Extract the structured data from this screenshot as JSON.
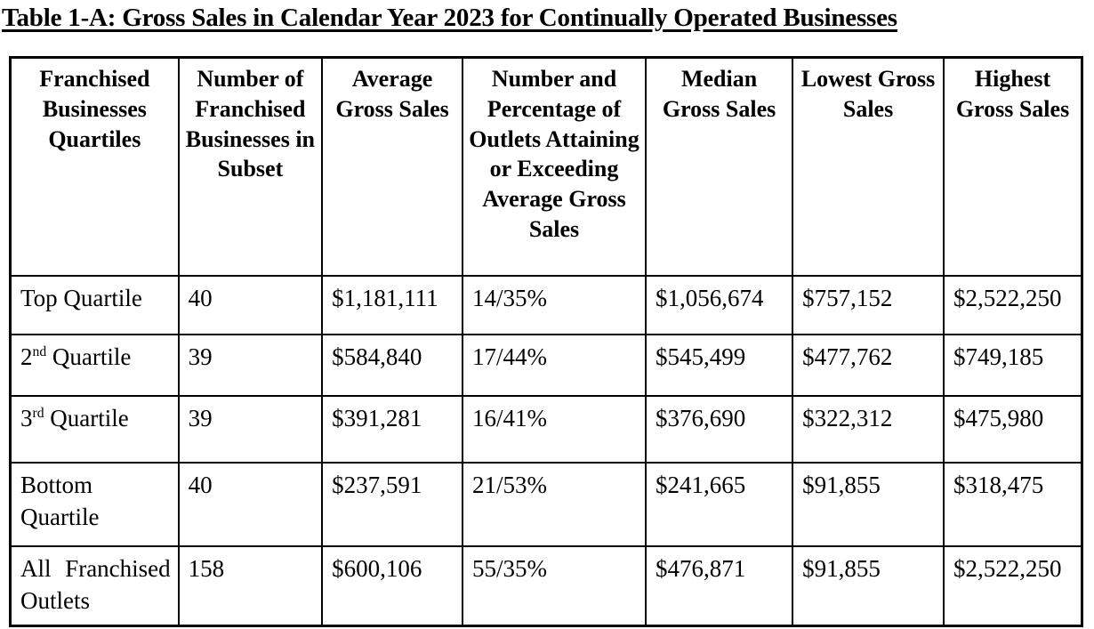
{
  "document": {
    "title": "Table 1-A: Gross Sales in Calendar Year 2023 for Continually Operated Businesses"
  },
  "table": {
    "headers": [
      "Franchised Businesses Quartiles",
      "Number of Franchised Businesses in Subset",
      "Average Gross Sales",
      "Number and Percentage of Outlets Attaining or Exceeding Average Gross Sales",
      "Median Gross Sales",
      "Lowest Gross Sales",
      "Highest Gross Sales"
    ],
    "rows": [
      {
        "label": {
          "pre": "Top Quartile",
          "sup": "",
          "post": ""
        },
        "cells": [
          "40",
          "$1,181,111",
          "14/35%",
          "$1,056,674",
          "$757,152",
          "$2,522,250"
        ]
      },
      {
        "label": {
          "pre": "2",
          "sup": "nd",
          "post": " Quartile"
        },
        "cells": [
          "39",
          "$584,840",
          "17/44%",
          "$545,499",
          "$477,762",
          "$749,185"
        ]
      },
      {
        "label": {
          "pre": "3",
          "sup": "rd",
          "post": " Quartile"
        },
        "cells": [
          "39",
          "$391,281",
          "16/41%",
          "$376,690",
          "$322,312",
          "$475,980"
        ]
      },
      {
        "label": {
          "pre": "Bottom Quartile",
          "sup": "",
          "post": ""
        },
        "cells": [
          "40",
          "$237,591",
          "21/53%",
          "$241,665",
          "$91,855",
          "$318,475"
        ]
      },
      {
        "label": {
          "pre": "All Franchised Outlets",
          "sup": "",
          "post": ""
        },
        "cells": [
          "158",
          "$600,106",
          "55/35%",
          "$476,871",
          "$91,855",
          "$2,522,250"
        ]
      }
    ]
  }
}
